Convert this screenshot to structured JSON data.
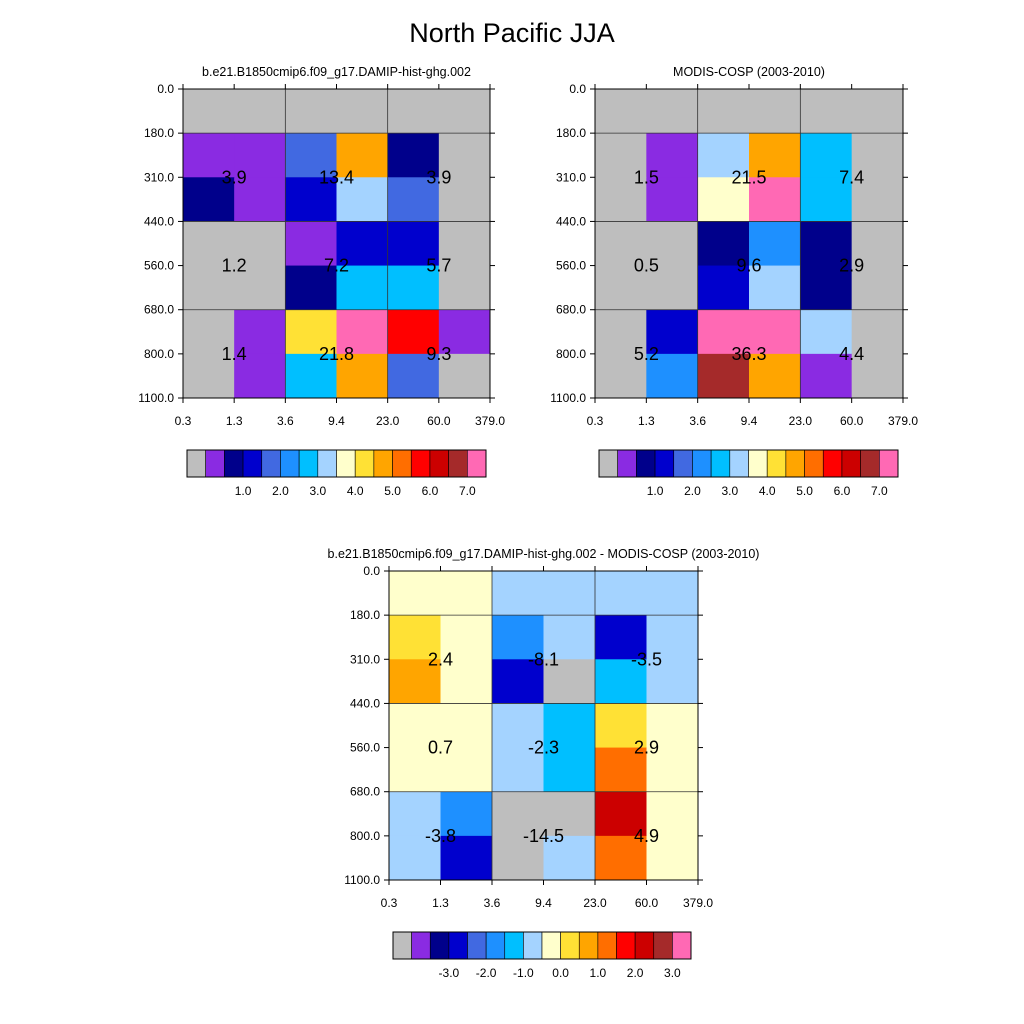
{
  "title": "North Pacific JJA",
  "chart_data": [
    {
      "type": "heatmap",
      "title": "b.e21.B1850cmip6.f09_g17.DAMIP-hist-ghg.002",
      "x_ticks": [
        "0.3",
        "1.3",
        "3.6",
        "9.4",
        "23.0",
        "60.0",
        "379.0"
      ],
      "y_ticks": [
        "0.0",
        "180.0",
        "310.0",
        "440.0",
        "560.0",
        "680.0",
        "800.0",
        "1100.0"
      ],
      "grid": true,
      "cells": [
        [
          "#BEBEBE",
          "#BEBEBE",
          "#BEBEBE",
          "#BEBEBE",
          "#BEBEBE",
          "#BEBEBE"
        ],
        [
          "#8A2BE2",
          "#8A2BE2",
          "#4169E1",
          "#FFA500",
          "#00008B",
          "#BEBEBE"
        ],
        [
          "#00008B",
          "#8A2BE2",
          "#0000CD",
          "#A4D3FF",
          "#4169E1",
          "#BEBEBE"
        ],
        [
          "#BEBEBE",
          "#BEBEBE",
          "#8A2BE2",
          "#0000CD",
          "#0000CD",
          "#BEBEBE"
        ],
        [
          "#BEBEBE",
          "#BEBEBE",
          "#00008B",
          "#00BFFF",
          "#00BFFF",
          "#BEBEBE"
        ],
        [
          "#BEBEBE",
          "#8A2BE2",
          "#FFE135",
          "#FF69B4",
          "#FF0000",
          "#8A2BE2"
        ],
        [
          "#BEBEBE",
          "#8A2BE2",
          "#00BFFF",
          "#FFA500",
          "#4169E1",
          "#BEBEBE"
        ]
      ],
      "block_values": [
        [
          "3.9",
          "13.4",
          "3.9"
        ],
        [
          "1.2",
          "7.2",
          "5.7"
        ],
        [
          "1.4",
          "21.8",
          "9.3"
        ]
      ],
      "colorbar": {
        "colors": [
          "#BEBEBE",
          "#8A2BE2",
          "#00008B",
          "#0000CD",
          "#4169E1",
          "#1E90FF",
          "#00BFFF",
          "#A4D3FF",
          "#FFFFCC",
          "#FFE135",
          "#FFA500",
          "#FF6E00",
          "#FF0000",
          "#CC0000",
          "#A52A2A",
          "#FF69B4"
        ],
        "labels": [
          "1.0",
          "2.0",
          "3.0",
          "4.0",
          "5.0",
          "6.0",
          "7.0"
        ]
      }
    },
    {
      "type": "heatmap",
      "title": "MODIS-COSP (2003-2010)",
      "x_ticks": [
        "0.3",
        "1.3",
        "3.6",
        "9.4",
        "23.0",
        "60.0",
        "379.0"
      ],
      "y_ticks": [
        "0.0",
        "180.0",
        "310.0",
        "440.0",
        "560.0",
        "680.0",
        "800.0",
        "1100.0"
      ],
      "grid": true,
      "cells": [
        [
          "#BEBEBE",
          "#BEBEBE",
          "#BEBEBE",
          "#BEBEBE",
          "#BEBEBE",
          "#BEBEBE"
        ],
        [
          "#BEBEBE",
          "#8A2BE2",
          "#A4D3FF",
          "#FFA500",
          "#00BFFF",
          "#BEBEBE"
        ],
        [
          "#BEBEBE",
          "#8A2BE2",
          "#FFFFCC",
          "#FF69B4",
          "#00BFFF",
          "#BEBEBE"
        ],
        [
          "#BEBEBE",
          "#BEBEBE",
          "#00008B",
          "#1E90FF",
          "#00008B",
          "#BEBEBE"
        ],
        [
          "#BEBEBE",
          "#BEBEBE",
          "#0000CD",
          "#A4D3FF",
          "#00008B",
          "#BEBEBE"
        ],
        [
          "#BEBEBE",
          "#0000CD",
          "#FF69B4",
          "#FF69B4",
          "#A4D3FF",
          "#BEBEBE"
        ],
        [
          "#BEBEBE",
          "#1E90FF",
          "#A52A2A",
          "#FFA500",
          "#8A2BE2",
          "#BEBEBE"
        ]
      ],
      "block_values": [
        [
          "1.5",
          "21.5",
          "7.4"
        ],
        [
          "0.5",
          "9.6",
          "2.9"
        ],
        [
          "5.2",
          "36.3",
          "4.4"
        ]
      ],
      "colorbar": {
        "colors": [
          "#BEBEBE",
          "#8A2BE2",
          "#00008B",
          "#0000CD",
          "#4169E1",
          "#1E90FF",
          "#00BFFF",
          "#A4D3FF",
          "#FFFFCC",
          "#FFE135",
          "#FFA500",
          "#FF6E00",
          "#FF0000",
          "#CC0000",
          "#A52A2A",
          "#FF69B4"
        ],
        "labels": [
          "1.0",
          "2.0",
          "3.0",
          "4.0",
          "5.0",
          "6.0",
          "7.0"
        ]
      }
    },
    {
      "type": "heatmap",
      "title": "b.e21.B1850cmip6.f09_g17.DAMIP-hist-ghg.002 - MODIS-COSP (2003-2010)",
      "x_ticks": [
        "0.3",
        "1.3",
        "3.6",
        "9.4",
        "23.0",
        "60.0",
        "379.0"
      ],
      "y_ticks": [
        "0.0",
        "180.0",
        "310.0",
        "440.0",
        "560.0",
        "680.0",
        "800.0",
        "1100.0"
      ],
      "grid": true,
      "cells": [
        [
          "#FFFFCC",
          "#FFFFCC",
          "#A4D3FF",
          "#A4D3FF",
          "#A4D3FF",
          "#A4D3FF"
        ],
        [
          "#FFE135",
          "#FFFFCC",
          "#1E90FF",
          "#A4D3FF",
          "#0000CD",
          "#A4D3FF"
        ],
        [
          "#FFA500",
          "#FFFFCC",
          "#0000CD",
          "#BEBEBE",
          "#00BFFF",
          "#A4D3FF"
        ],
        [
          "#FFFFCC",
          "#FFFFCC",
          "#A4D3FF",
          "#00BFFF",
          "#FFE135",
          "#FFFFCC"
        ],
        [
          "#FFFFCC",
          "#FFFFCC",
          "#A4D3FF",
          "#00BFFF",
          "#FF6E00",
          "#FFFFCC"
        ],
        [
          "#A4D3FF",
          "#1E90FF",
          "#BEBEBE",
          "#BEBEBE",
          "#CC0000",
          "#FFFFCC"
        ],
        [
          "#A4D3FF",
          "#0000CD",
          "#BEBEBE",
          "#A4D3FF",
          "#FF6E00",
          "#FFFFCC"
        ]
      ],
      "block_values": [
        [
          "2.4",
          "-8.1",
          "-3.5"
        ],
        [
          "0.7",
          "-2.3",
          "2.9"
        ],
        [
          "-3.8",
          "-14.5",
          "4.9"
        ]
      ],
      "colorbar": {
        "colors": [
          "#BEBEBE",
          "#8A2BE2",
          "#00008B",
          "#0000CD",
          "#4169E1",
          "#1E90FF",
          "#00BFFF",
          "#A4D3FF",
          "#FFFFCC",
          "#FFE135",
          "#FFA500",
          "#FF6E00",
          "#FF0000",
          "#CC0000",
          "#A52A2A",
          "#FF69B4"
        ],
        "labels": [
          "-3.0",
          "-2.0",
          "-1.0",
          "0.0",
          "1.0",
          "2.0",
          "3.0"
        ]
      }
    }
  ]
}
